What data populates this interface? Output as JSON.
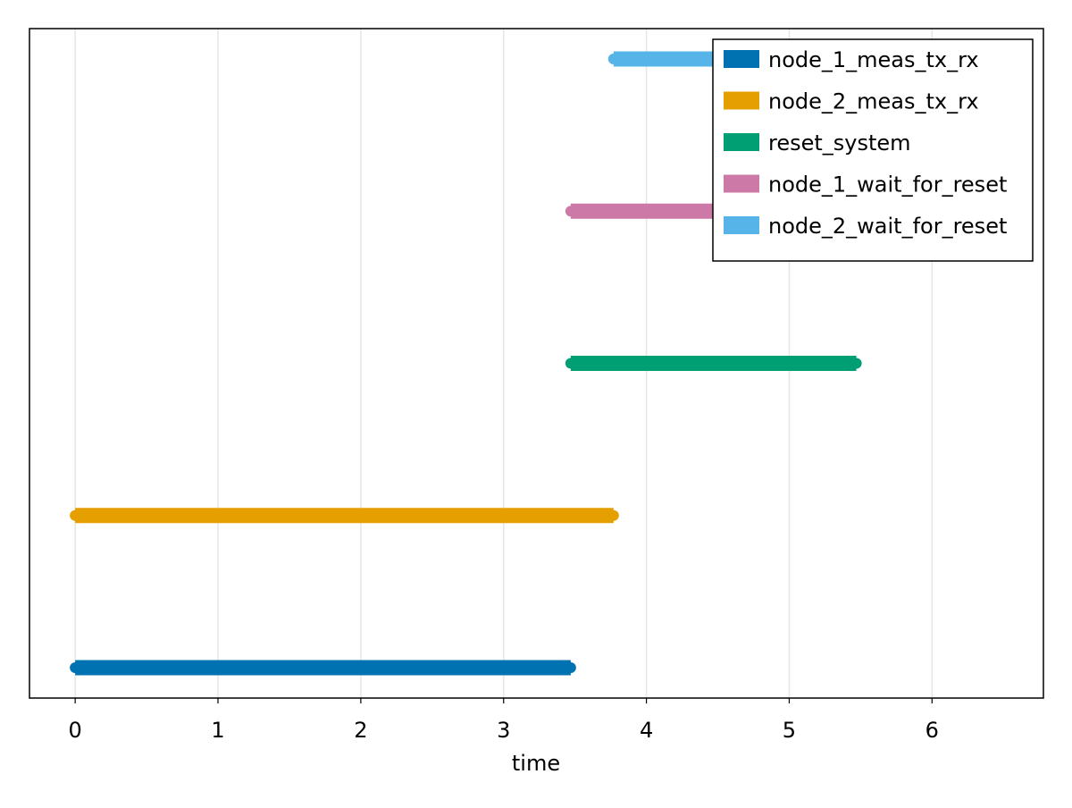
{
  "chart_data": {
    "type": "timeline",
    "title": "",
    "xlabel": "time",
    "ylabel": "",
    "xlim": [
      -0.32,
      6.78
    ],
    "xticks": [
      0,
      1,
      2,
      3,
      4,
      5,
      6
    ],
    "xtick_labels": [
      "0",
      "1",
      "2",
      "3",
      "4",
      "5",
      "6"
    ],
    "grid": true,
    "legend_position": "top-right",
    "series": [
      {
        "name": "node_1_meas_tx_rx",
        "color": "#0072b2",
        "start": 0.0,
        "end": 3.47
      },
      {
        "name": "node_2_meas_tx_rx",
        "color": "#e69f00",
        "start": 0.0,
        "end": 3.77
      },
      {
        "name": "reset_system",
        "color": "#009e73",
        "start": 3.47,
        "end": 5.47
      },
      {
        "name": "node_1_wait_for_reset",
        "color": "#cc79a7",
        "start": 3.47,
        "end": 5.47
      },
      {
        "name": "node_2_wait_for_reset",
        "color": "#56b4e9",
        "start": 3.77,
        "end": 5.47
      }
    ]
  }
}
